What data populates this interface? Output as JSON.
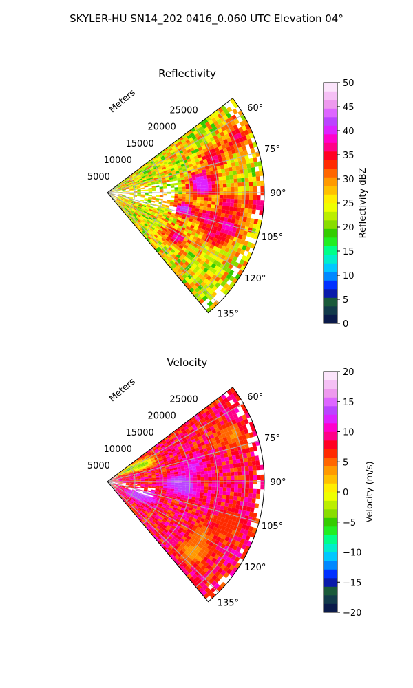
{
  "suptitle": "SKYLER-HU  SN14_202  0416_0.060 UTC Elevation 04°",
  "chart_data": [
    {
      "type": "heatmap",
      "projection": "polar-sector",
      "title": "Reflectivity",
      "range_axis_label": "Meters",
      "range_ticks": [
        "5000",
        "10000",
        "15000",
        "20000",
        "25000"
      ],
      "range_values": [
        5000,
        10000,
        15000,
        20000,
        25000
      ],
      "range_max": 28500,
      "azimuth_ticks": [
        "60°",
        "75°",
        "90°",
        "105°",
        "120°",
        "135°"
      ],
      "azimuth_values": [
        60,
        75,
        90,
        105,
        120,
        135
      ],
      "azimuth_range": [
        53,
        140
      ],
      "grid": true,
      "colorbar": {
        "label": "Reflectivity dBZ",
        "range": [
          0,
          50
        ],
        "ticks": [
          "0",
          "5",
          "10",
          "15",
          "20",
          "25",
          "30",
          "35",
          "40",
          "45",
          "50"
        ],
        "colors": [
          "#0a1a4a",
          "#123a4a",
          "#1a5a3a",
          "#0a1aaa",
          "#0030ff",
          "#0088ff",
          "#00c8ff",
          "#00eecc",
          "#00ff88",
          "#22ee22",
          "#33cc00",
          "#88dd00",
          "#bbee00",
          "#eeff00",
          "#ffee00",
          "#ffc000",
          "#ff9900",
          "#ff6600",
          "#ff2a00",
          "#ff0022",
          "#ff0088",
          "#ff00cc",
          "#dd22ff",
          "#bb44ff",
          "#dd66ff",
          "#ee99ee",
          "#f5c0f5",
          "#fbe4fb"
        ]
      },
      "field": {
        "base_value": 25,
        "variation": 7,
        "feature_cells": [
          {
            "az": 83,
            "r": 0.6,
            "value": 42
          },
          {
            "az": 87,
            "r": 0.62,
            "value": 40
          },
          {
            "az": 102,
            "r": 0.5,
            "value": 42
          },
          {
            "az": 104,
            "r": 0.65,
            "value": 38
          },
          {
            "az": 106,
            "r": 0.8,
            "value": 40
          },
          {
            "az": 72,
            "r": 0.72,
            "value": 37
          },
          {
            "az": 67,
            "r": 0.9,
            "value": 36
          },
          {
            "az": 94,
            "r": 0.97,
            "value": 37
          },
          {
            "az": 112,
            "r": 0.72,
            "value": 36
          },
          {
            "az": 123,
            "r": 0.52,
            "value": 38
          },
          {
            "az": 95,
            "r": 0.78,
            "value": 37
          }
        ]
      }
    },
    {
      "type": "heatmap",
      "projection": "polar-sector",
      "title": "Velocity",
      "range_axis_label": "Meters",
      "range_ticks": [
        "5000",
        "10000",
        "15000",
        "20000",
        "25000"
      ],
      "range_values": [
        5000,
        10000,
        15000,
        20000,
        25000
      ],
      "range_max": 28500,
      "azimuth_ticks": [
        "60°",
        "75°",
        "90°",
        "105°",
        "120°",
        "135°"
      ],
      "azimuth_values": [
        60,
        75,
        90,
        105,
        120,
        135
      ],
      "azimuth_range": [
        53,
        140
      ],
      "grid": true,
      "colorbar": {
        "label": "Velocity (m/s)",
        "range": [
          -20,
          20
        ],
        "ticks": [
          "−20",
          "−15",
          "−10",
          "−5",
          "0",
          "5",
          "10",
          "15",
          "20"
        ],
        "colors": [
          "#0a1a4a",
          "#123a4a",
          "#1a5a3a",
          "#0a1aaa",
          "#0030ff",
          "#0088ff",
          "#00c8ff",
          "#00eecc",
          "#00ff88",
          "#22ee22",
          "#33cc00",
          "#88dd00",
          "#bbee00",
          "#eeff00",
          "#ffee00",
          "#ffc000",
          "#ff9900",
          "#ff6600",
          "#ff2a00",
          "#ff0022",
          "#ff0088",
          "#ff00cc",
          "#dd22ff",
          "#bb44ff",
          "#dd66ff",
          "#ee99ee",
          "#f5c0f5",
          "#fbe4fb"
        ]
      },
      "field": {
        "base_value": 8,
        "variation": 3,
        "feature_cells": [
          {
            "az": 90,
            "r": 0.45,
            "value": 15
          },
          {
            "az": 95,
            "r": 0.5,
            "value": 14
          },
          {
            "az": 80,
            "r": 0.55,
            "value": 12
          },
          {
            "az": 65,
            "r": 0.25,
            "value": -4
          },
          {
            "az": 60,
            "r": 0.15,
            "value": -5
          },
          {
            "az": 110,
            "r": 0.25,
            "value": 15
          },
          {
            "az": 118,
            "r": 0.2,
            "value": 14
          },
          {
            "az": 120,
            "r": 0.7,
            "value": 4
          },
          {
            "az": 130,
            "r": 0.7,
            "value": 3
          },
          {
            "az": 70,
            "r": 0.85,
            "value": 4
          },
          {
            "az": 110,
            "r": 0.8,
            "value": 6
          }
        ]
      }
    }
  ]
}
